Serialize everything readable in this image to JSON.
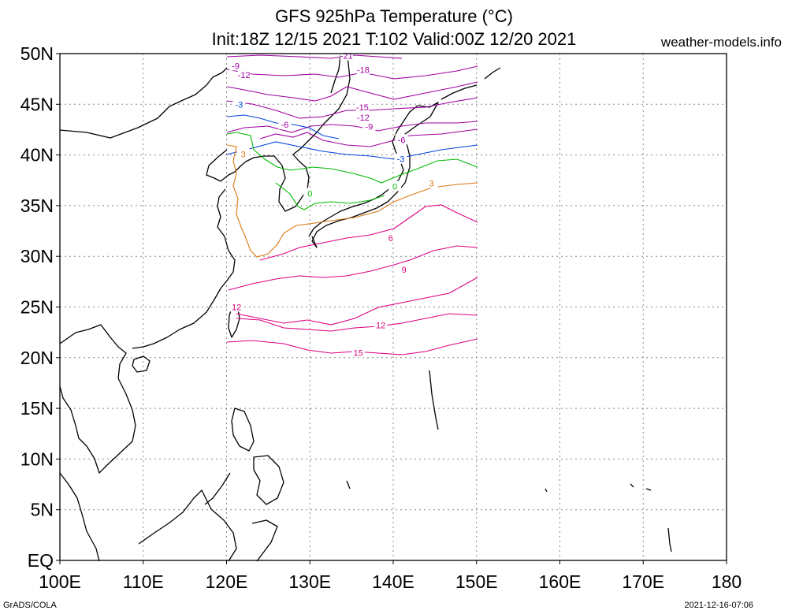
{
  "header": {
    "title_line1": "GFS 925hPa Temperature (°C)",
    "title_line2": "Init:18Z 12/15 2021 T:102 Valid:00Z 12/20 2021",
    "site": "weather-models.info"
  },
  "footer": {
    "credit": "GrADS/COLA",
    "timestamp": "2021-12-16-07:06"
  },
  "map": {
    "lon_labels": [
      "100E",
      "110E",
      "120E",
      "130E",
      "140E",
      "150E",
      "160E",
      "170E",
      "180"
    ],
    "lat_labels": [
      "50N",
      "45N",
      "40N",
      "35N",
      "30N",
      "25N",
      "20N",
      "15N",
      "10N",
      "5N",
      "EQ"
    ],
    "lon_range": [
      100,
      180
    ],
    "lat_range": [
      0,
      50
    ],
    "data_domain": {
      "lon": [
        120,
        150
      ],
      "lat": [
        20,
        50
      ]
    },
    "contour_labels": [
      {
        "text": "-21",
        "lon": 134.4,
        "lat": 49.8,
        "color": "#a000a0"
      },
      {
        "text": "-18",
        "lon": 136.4,
        "lat": 48.4,
        "color": "#a000a0"
      },
      {
        "text": "-15",
        "lon": 136.3,
        "lat": 44.7,
        "color": "#a000a0"
      },
      {
        "text": "-12",
        "lon": 136.4,
        "lat": 43.7,
        "color": "#a000a0"
      },
      {
        "text": "-9",
        "lon": 137.1,
        "lat": 42.8,
        "color": "#a000a0"
      },
      {
        "text": "-9",
        "lon": 121.1,
        "lat": 48.8,
        "color": "#a000a0"
      },
      {
        "text": "-12",
        "lon": 122.1,
        "lat": 47.9,
        "color": "#a000a0"
      },
      {
        "text": "-6",
        "lon": 127.0,
        "lat": 43.0,
        "color": "#a000a0"
      },
      {
        "text": "-6",
        "lon": 141.0,
        "lat": 41.5,
        "color": "#a000a0"
      },
      {
        "text": "-3",
        "lon": 121.5,
        "lat": 45.0,
        "color": "#0044dd"
      },
      {
        "text": "-3",
        "lon": 140.9,
        "lat": 39.6,
        "color": "#0044dd"
      },
      {
        "text": "0",
        "lon": 140.2,
        "lat": 36.9,
        "color": "#00bb00"
      },
      {
        "text": "0",
        "lon": 130.0,
        "lat": 36.2,
        "color": "#00bb00"
      },
      {
        "text": "3",
        "lon": 122.0,
        "lat": 40.1,
        "color": "#dd7711"
      },
      {
        "text": "3",
        "lon": 144.6,
        "lat": 37.2,
        "color": "#dd7711"
      },
      {
        "text": "6",
        "lon": 139.7,
        "lat": 31.8,
        "color": "#dd0080"
      },
      {
        "text": "9",
        "lon": 141.3,
        "lat": 28.7,
        "color": "#dd0080"
      },
      {
        "text": "12",
        "lon": 121.2,
        "lat": 25.0,
        "color": "#dd0080"
      },
      {
        "text": "12",
        "lon": 138.5,
        "lat": 23.2,
        "color": "#dd0080"
      },
      {
        "text": "15",
        "lon": 135.8,
        "lat": 20.5,
        "color": "#dd0080"
      }
    ],
    "colors": {
      "purple": "#a000a0",
      "blue": "#0044dd",
      "green": "#00bb00",
      "orange": "#dd7711",
      "magenta": "#dd0080",
      "grid": "#888888",
      "coast": "#000000"
    }
  }
}
